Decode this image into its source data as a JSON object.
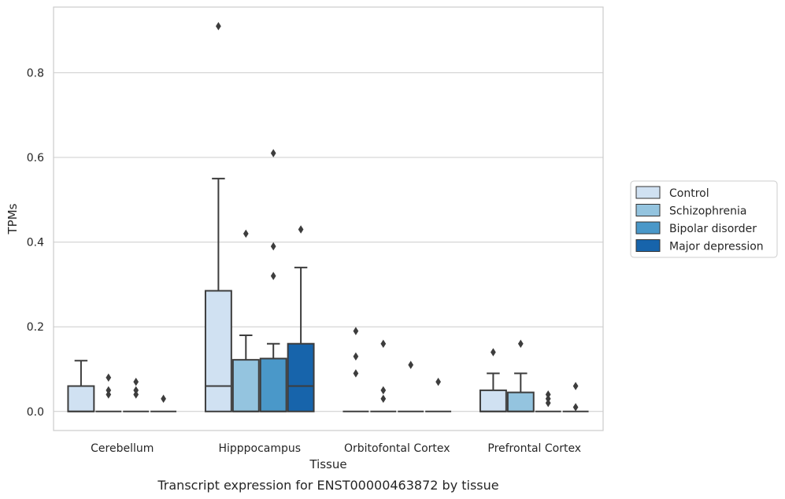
{
  "caption": "Transcript expression for ENST00000463872 by tissue",
  "chart_data": {
    "type": "box",
    "title": "",
    "xlabel": "Tissue",
    "ylabel": "TPMs",
    "ylim": [
      -0.045,
      0.955
    ],
    "yticks": [
      0.0,
      0.2,
      0.4,
      0.6,
      0.8
    ],
    "ytick_labels": [
      "0.0",
      "0.2",
      "0.4",
      "0.6",
      "0.8"
    ],
    "grid": "horizontal",
    "legend_position": "right",
    "categories": [
      "Cerebellum",
      "Hipppocampus",
      "Orbitofontal Cortex",
      "Prefrontal Cortex"
    ],
    "series": [
      {
        "name": "Control",
        "color": "#d0e1f2",
        "boxes": [
          {
            "q1": 0.0,
            "median": 0.0,
            "q3": 0.06,
            "whisker_low": 0.0,
            "whisker_high": 0.12,
            "outliers": []
          },
          {
            "q1": 0.0,
            "median": 0.06,
            "q3": 0.285,
            "whisker_low": 0.0,
            "whisker_high": 0.55,
            "outliers": [
              0.91
            ]
          },
          {
            "q1": 0.0,
            "median": 0.0,
            "q3": 0.0,
            "whisker_low": 0.0,
            "whisker_high": 0.0,
            "outliers": [
              0.19,
              0.13,
              0.09
            ]
          },
          {
            "q1": 0.0,
            "median": 0.0,
            "q3": 0.05,
            "whisker_low": 0.0,
            "whisker_high": 0.09,
            "outliers": [
              0.14
            ]
          }
        ]
      },
      {
        "name": "Schizophrenia",
        "color": "#94c4df",
        "boxes": [
          {
            "q1": 0.0,
            "median": 0.0,
            "q3": 0.0,
            "whisker_low": 0.0,
            "whisker_high": 0.0,
            "outliers": [
              0.08,
              0.05,
              0.04
            ]
          },
          {
            "q1": 0.0,
            "median": 0.0,
            "q3": 0.122,
            "whisker_low": 0.0,
            "whisker_high": 0.18,
            "outliers": [
              0.42
            ]
          },
          {
            "q1": 0.0,
            "median": 0.0,
            "q3": 0.0,
            "whisker_low": 0.0,
            "whisker_high": 0.0,
            "outliers": [
              0.16,
              0.05,
              0.03
            ]
          },
          {
            "q1": 0.0,
            "median": 0.0,
            "q3": 0.045,
            "whisker_low": 0.0,
            "whisker_high": 0.09,
            "outliers": [
              0.16
            ]
          }
        ]
      },
      {
        "name": "Bipolar disorder",
        "color": "#4a98c9",
        "boxes": [
          {
            "q1": 0.0,
            "median": 0.0,
            "q3": 0.0,
            "whisker_low": 0.0,
            "whisker_high": 0.0,
            "outliers": [
              0.07,
              0.05,
              0.04
            ]
          },
          {
            "q1": 0.0,
            "median": 0.0,
            "q3": 0.125,
            "whisker_low": 0.0,
            "whisker_high": 0.16,
            "outliers": [
              0.61,
              0.39,
              0.32
            ]
          },
          {
            "q1": 0.0,
            "median": 0.0,
            "q3": 0.0,
            "whisker_low": 0.0,
            "whisker_high": 0.0,
            "outliers": [
              0.11
            ]
          },
          {
            "q1": 0.0,
            "median": 0.0,
            "q3": 0.0,
            "whisker_low": 0.0,
            "whisker_high": 0.0,
            "outliers": [
              0.04,
              0.03,
              0.02
            ]
          }
        ]
      },
      {
        "name": "Major depression",
        "color": "#1764ab",
        "boxes": [
          {
            "q1": 0.0,
            "median": 0.0,
            "q3": 0.0,
            "whisker_low": 0.0,
            "whisker_high": 0.0,
            "outliers": [
              0.03
            ]
          },
          {
            "q1": 0.0,
            "median": 0.06,
            "q3": 0.16,
            "whisker_low": 0.0,
            "whisker_high": 0.34,
            "outliers": [
              0.43
            ]
          },
          {
            "q1": 0.0,
            "median": 0.0,
            "q3": 0.0,
            "whisker_low": 0.0,
            "whisker_high": 0.0,
            "outliers": [
              0.07
            ]
          },
          {
            "q1": 0.0,
            "median": 0.0,
            "q3": 0.0,
            "whisker_low": 0.0,
            "whisker_high": 0.0,
            "outliers": [
              0.06,
              0.01
            ]
          }
        ]
      }
    ]
  }
}
